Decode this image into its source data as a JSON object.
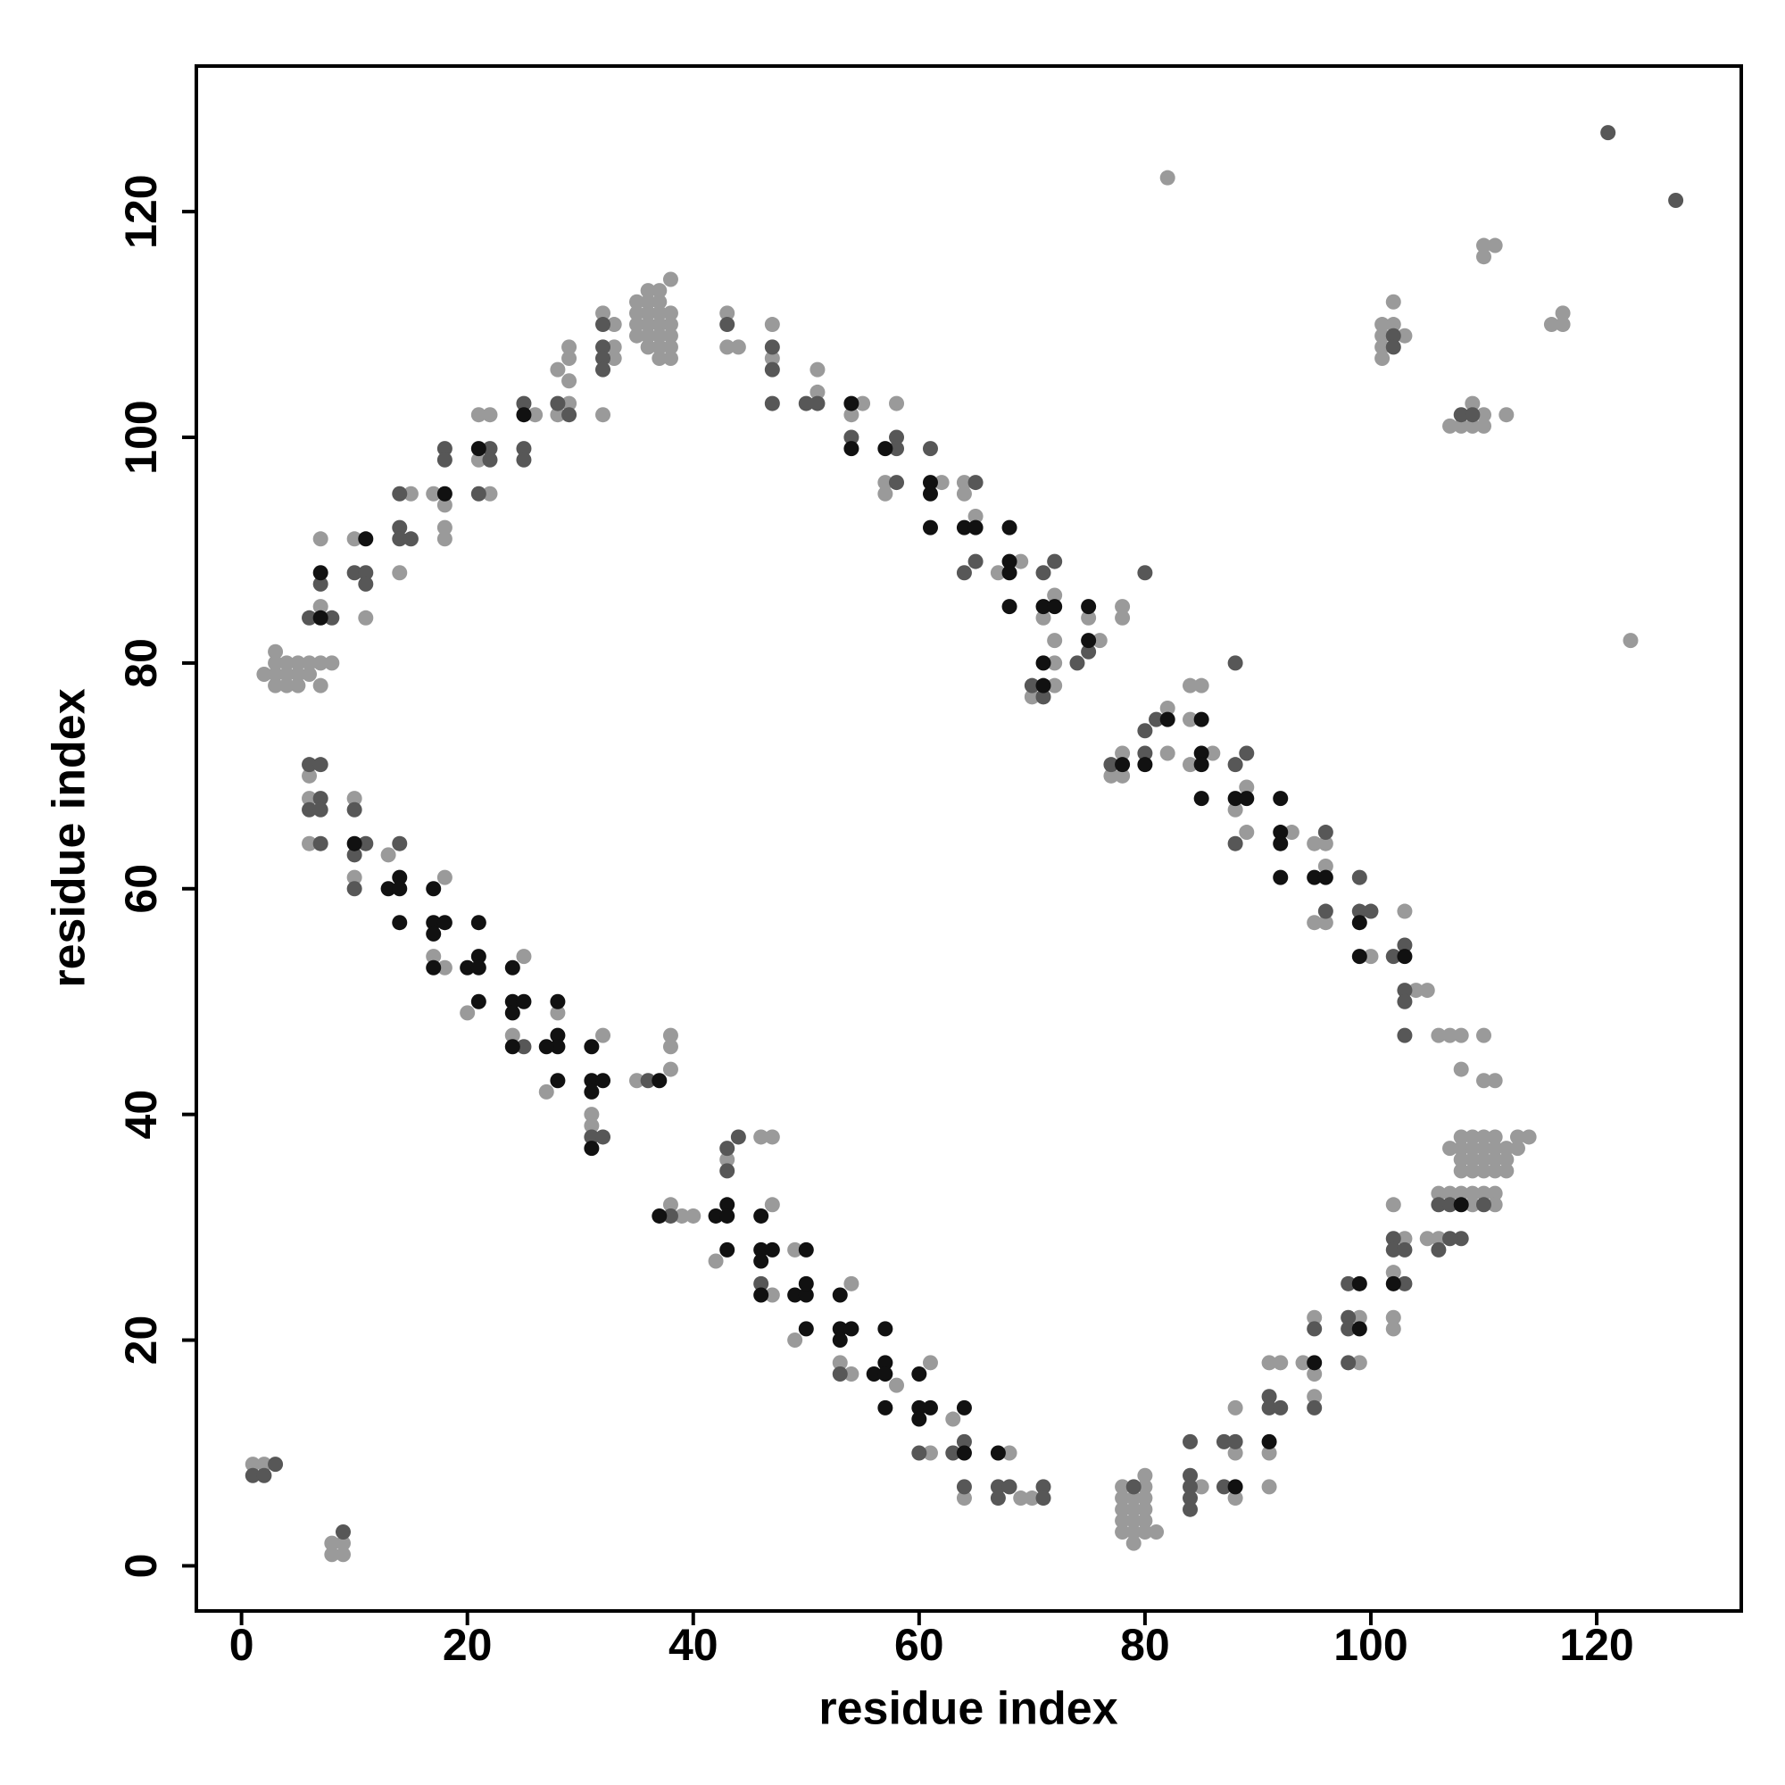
{
  "chart_data": {
    "type": "scatter",
    "x_label": "residue index",
    "y_label": "residue index",
    "xlim": [
      -4,
      132.8
    ],
    "ylim": [
      -4,
      132.9
    ],
    "xticks": [
      0,
      20,
      40,
      60,
      80,
      100,
      120
    ],
    "yticks": [
      0,
      20,
      40,
      60,
      80,
      100,
      120
    ],
    "grid": false,
    "series": [
      {
        "color": "#9a9a9a",
        "x": [
          2,
          3,
          3,
          4,
          4,
          5,
          5,
          6,
          6,
          7,
          7,
          8,
          3,
          4,
          5,
          3,
          7,
          7,
          10,
          11,
          15,
          14,
          17,
          18,
          18,
          18,
          21,
          22,
          21,
          22,
          26,
          28,
          29,
          29,
          29,
          29,
          28,
          32,
          33,
          33,
          33,
          32,
          35,
          36,
          37,
          35,
          36,
          37,
          38,
          35,
          36,
          37,
          38,
          35,
          36,
          37,
          38,
          36,
          37,
          38,
          37,
          38,
          37,
          38,
          36,
          43,
          43,
          44,
          47,
          47,
          51,
          51,
          55,
          54,
          58,
          57,
          57,
          62,
          64,
          64,
          65,
          69,
          67,
          72,
          71,
          72,
          72,
          70,
          72,
          75,
          76,
          78,
          78,
          6,
          6,
          6,
          10,
          10,
          13,
          18,
          17,
          18,
          20,
          25,
          24,
          28,
          27,
          32,
          31,
          31,
          35,
          38,
          38,
          38,
          38,
          39,
          40,
          42,
          43,
          46,
          47,
          47,
          47,
          49,
          54,
          49,
          53,
          54,
          58,
          61,
          61,
          63,
          64,
          68,
          69,
          70,
          78,
          78,
          78,
          78,
          79,
          79,
          79,
          79,
          79,
          80,
          80,
          80,
          80,
          80,
          80,
          81,
          78,
          85,
          88,
          88,
          88,
          91,
          92,
          91,
          91,
          94,
          95,
          95,
          95,
          99,
          99,
          102,
          103,
          102,
          102,
          102,
          105,
          106,
          106,
          107,
          108,
          107,
          108,
          109,
          110,
          111,
          108,
          109,
          110,
          111,
          112,
          113,
          114,
          108,
          109,
          110,
          111,
          112,
          113,
          108,
          109,
          110,
          111,
          112,
          110,
          111,
          111,
          109,
          109,
          106,
          107,
          108,
          110,
          108,
          110,
          111,
          105,
          78,
          77,
          78,
          82,
          82,
          84,
          85,
          84,
          86,
          84,
          89,
          88,
          89,
          93,
          95,
          96,
          96,
          95,
          96,
          100,
          103,
          104,
          82,
          123,
          102,
          102,
          101,
          101,
          103,
          101,
          101,
          107,
          109,
          108,
          110,
          109,
          110,
          112,
          110,
          111,
          110,
          116,
          117,
          117,
          1,
          2,
          8,
          8,
          9,
          9
        ],
        "values": [
          79,
          81,
          78,
          80,
          79,
          78,
          80,
          79,
          80,
          78,
          80,
          80,
          80,
          78,
          79,
          79,
          91,
          85,
          91,
          84,
          95,
          88,
          95,
          92,
          91,
          94,
          102,
          102,
          98,
          95,
          102,
          106,
          108,
          107,
          105,
          103,
          102,
          111,
          110,
          108,
          107,
          102,
          112,
          112,
          112,
          111,
          111,
          111,
          111,
          110,
          110,
          110,
          110,
          109,
          109,
          109,
          109,
          108,
          108,
          108,
          107,
          107,
          113,
          114,
          113,
          111,
          108,
          108,
          110,
          107,
          104,
          106,
          103,
          102,
          103,
          96,
          95,
          96,
          96,
          95,
          93,
          89,
          88,
          86,
          84,
          82,
          80,
          77,
          78,
          84,
          82,
          85,
          84,
          70,
          68,
          64,
          68,
          61,
          63,
          61,
          54,
          53,
          49,
          54,
          47,
          49,
          42,
          47,
          40,
          39,
          43,
          44,
          46,
          47,
          32,
          31,
          31,
          27,
          36,
          38,
          38,
          32,
          24,
          28,
          25,
          20,
          18,
          17,
          16,
          18,
          10,
          13,
          6,
          10,
          6,
          6,
          6,
          5,
          4,
          3,
          6,
          5,
          4,
          3,
          2,
          8,
          7,
          6,
          5,
          4,
          3,
          3,
          7,
          7,
          10,
          14,
          6,
          18,
          18,
          10,
          7,
          18,
          22,
          17,
          15,
          22,
          18,
          32,
          29,
          26,
          22,
          21,
          29,
          29,
          33,
          33,
          33,
          37,
          38,
          38,
          38,
          38,
          37,
          37,
          37,
          37,
          37,
          38,
          38,
          36,
          36,
          36,
          36,
          36,
          37,
          35,
          35,
          35,
          35,
          35,
          33,
          33,
          32,
          33,
          32,
          47,
          47,
          47,
          47,
          44,
          43,
          43,
          51,
          72,
          70,
          70,
          76,
          72,
          78,
          78,
          75,
          72,
          71,
          69,
          67,
          65,
          65,
          64,
          64,
          62,
          57,
          57,
          54,
          58,
          51,
          123,
          82,
          112,
          110,
          110,
          109,
          109,
          108,
          107,
          101,
          103,
          101,
          102,
          101,
          101,
          102,
          117,
          117,
          116,
          110,
          111,
          110,
          9,
          9,
          2,
          1,
          1,
          2
        ]
      },
      {
        "color": "#575757",
        "x": [
          6,
          7,
          8,
          10,
          11,
          11,
          14,
          14,
          14,
          15,
          18,
          18,
          21,
          22,
          22,
          25,
          25,
          25,
          28,
          29,
          32,
          32,
          32,
          32,
          43,
          47,
          47,
          47,
          50,
          51,
          54,
          58,
          58,
          58,
          61,
          65,
          64,
          65,
          71,
          72,
          70,
          71,
          75,
          74,
          80,
          6,
          7,
          7,
          6,
          7,
          7,
          10,
          11,
          10,
          10,
          14,
          25,
          31,
          32,
          36,
          38,
          43,
          43,
          44,
          46,
          53,
          60,
          63,
          64,
          64,
          67,
          68,
          67,
          71,
          71,
          79,
          84,
          84,
          84,
          84,
          84,
          87,
          88,
          87,
          91,
          91,
          92,
          95,
          95,
          98,
          98,
          98,
          98,
          102,
          102,
          103,
          103,
          106,
          106,
          107,
          108,
          107,
          110,
          77,
          80,
          80,
          81,
          88,
          89,
          88,
          88,
          96,
          96,
          99,
          99,
          100,
          102,
          103,
          103,
          103,
          103,
          121,
          127,
          102,
          102,
          108,
          109,
          3,
          1,
          2,
          9
        ],
        "values": [
          84,
          87,
          84,
          88,
          88,
          87,
          95,
          92,
          91,
          91,
          99,
          98,
          95,
          99,
          98,
          103,
          99,
          98,
          103,
          102,
          110,
          108,
          107,
          106,
          110,
          108,
          106,
          103,
          103,
          103,
          100,
          100,
          99,
          96,
          99,
          96,
          88,
          89,
          88,
          89,
          78,
          77,
          81,
          80,
          88,
          71,
          71,
          68,
          67,
          67,
          64,
          67,
          64,
          63,
          60,
          64,
          46,
          38,
          38,
          43,
          31,
          35,
          37,
          38,
          25,
          17,
          10,
          10,
          11,
          7,
          7,
          7,
          6,
          7,
          6,
          7,
          11,
          8,
          7,
          6,
          5,
          11,
          11,
          7,
          15,
          14,
          14,
          21,
          14,
          25,
          22,
          21,
          18,
          29,
          28,
          28,
          25,
          28,
          32,
          32,
          29,
          29,
          32,
          71,
          72,
          74,
          75,
          80,
          72,
          71,
          64,
          65,
          58,
          61,
          58,
          58,
          54,
          55,
          51,
          50,
          47,
          127,
          121,
          109,
          108,
          102,
          102,
          9,
          8,
          8,
          3
        ]
      },
      {
        "color": "#111111",
        "x": [
          7,
          7,
          11,
          18,
          21,
          25,
          54,
          54,
          57,
          61,
          61,
          61,
          64,
          65,
          68,
          68,
          68,
          68,
          71,
          72,
          71,
          71,
          75,
          75,
          10,
          13,
          14,
          14,
          14,
          17,
          17,
          18,
          17,
          17,
          21,
          20,
          21,
          21,
          21,
          24,
          24,
          25,
          24,
          24,
          28,
          28,
          28,
          27,
          28,
          31,
          31,
          32,
          31,
          31,
          37,
          37,
          42,
          43,
          43,
          43,
          46,
          46,
          47,
          46,
          46,
          50,
          49,
          50,
          50,
          50,
          53,
          53,
          54,
          53,
          56,
          57,
          57,
          57,
          57,
          60,
          60,
          61,
          60,
          64,
          64,
          67,
          88,
          91,
          95,
          99,
          99,
          102,
          108,
          78,
          80,
          82,
          85,
          85,
          85,
          85,
          88,
          89,
          92,
          92,
          92,
          92,
          95,
          96,
          99,
          99,
          103
        ],
        "values": [
          84,
          88,
          91,
          95,
          99,
          102,
          103,
          99,
          99,
          96,
          95,
          92,
          92,
          92,
          92,
          89,
          88,
          85,
          85,
          85,
          80,
          78,
          85,
          82,
          64,
          60,
          61,
          60,
          57,
          60,
          57,
          57,
          56,
          53,
          57,
          53,
          54,
          53,
          50,
          53,
          50,
          50,
          49,
          46,
          50,
          47,
          46,
          46,
          43,
          46,
          43,
          43,
          42,
          37,
          43,
          31,
          31,
          32,
          31,
          28,
          31,
          28,
          28,
          27,
          24,
          28,
          24,
          24,
          25,
          21,
          24,
          21,
          21,
          20,
          17,
          21,
          18,
          17,
          14,
          17,
          14,
          14,
          13,
          14,
          10,
          10,
          7,
          11,
          18,
          25,
          21,
          25,
          32,
          71,
          71,
          75,
          75,
          72,
          71,
          68,
          68,
          68,
          68,
          65,
          64,
          61,
          61,
          61,
          57,
          54,
          54
        ]
      }
    ]
  }
}
